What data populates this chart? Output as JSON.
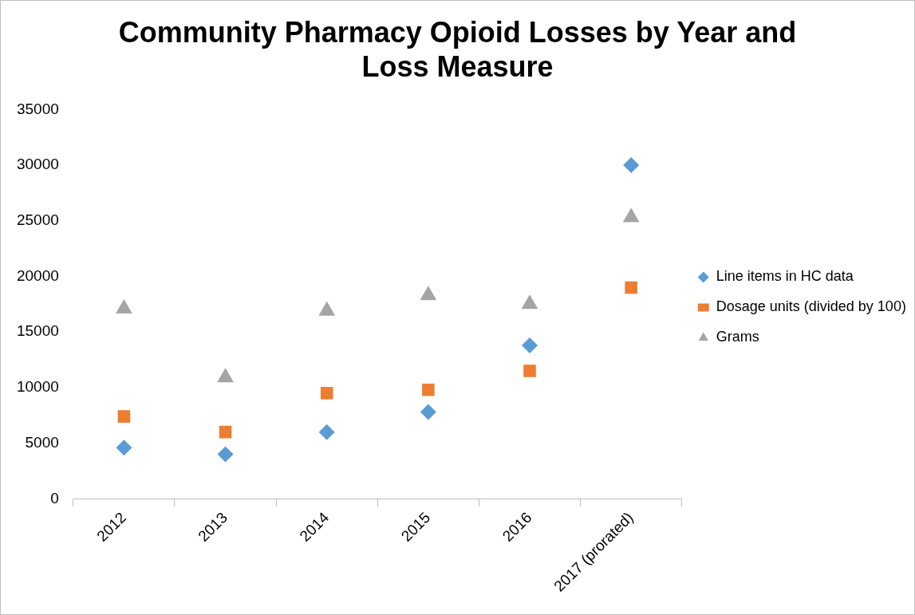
{
  "chart_data": {
    "type": "scatter",
    "title": "Community Pharmacy Opioid Losses by Year and Loss Measure",
    "categories": [
      "2012",
      "2013",
      "2014",
      "2015",
      "2016",
      "2017 (prorated)"
    ],
    "series": [
      {
        "name": "Line items in HC data",
        "color": "#5b9bd5",
        "marker": "diamond",
        "values": [
          4600,
          4000,
          6000,
          7800,
          13800,
          30000
        ]
      },
      {
        "name": "Dosage units (divided by 100)",
        "color": "#ed7d31",
        "marker": "square",
        "values": [
          7400,
          6000,
          9500,
          9800,
          11500,
          19000
        ]
      },
      {
        "name": "Grams",
        "color": "#a5a5a5",
        "marker": "triangle",
        "values": [
          17100,
          10900,
          16900,
          18300,
          17500,
          25300
        ]
      }
    ],
    "ylim": [
      0,
      35000
    ],
    "yticks": [
      0,
      5000,
      10000,
      15000,
      20000,
      25000,
      30000,
      35000
    ],
    "grid": false,
    "legend": "right"
  }
}
